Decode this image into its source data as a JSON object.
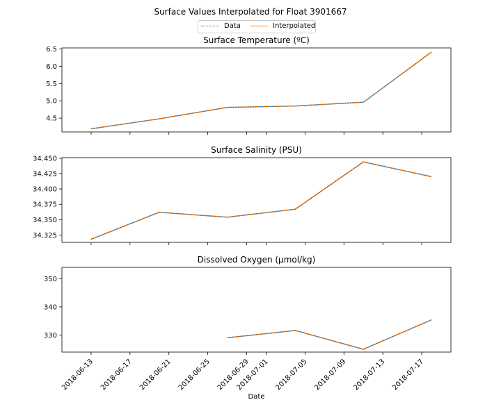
{
  "figure_title": "Surface Values Interpolated for Float 3901667",
  "legend": [
    {
      "label": "Data",
      "style": "dotted",
      "color": "#1f77b4"
    },
    {
      "label": "Interpolated",
      "style": "solid",
      "color": "#ff7f0e"
    }
  ],
  "colors": {
    "data": "#1f77b4",
    "interpolated": "#ff7f0e"
  },
  "chart_data": [
    {
      "type": "line",
      "title": "Surface Temperature (ºC)",
      "xlabel": "",
      "ylabel": "",
      "x": [
        "2018-06-13",
        "2018-06-20",
        "2018-06-27",
        "2018-07-04",
        "2018-07-11",
        "2018-07-18"
      ],
      "series": [
        {
          "name": "Data",
          "values": [
            4.19,
            4.48,
            4.81,
            4.85,
            4.96,
            6.41
          ]
        },
        {
          "name": "Interpolated",
          "values": [
            4.19,
            4.48,
            4.81,
            4.85,
            4.96,
            6.41
          ]
        }
      ],
      "ylim": [
        4.1,
        6.53
      ],
      "yticks": [
        4.5,
        5.0,
        5.5,
        6.0,
        6.5
      ],
      "ytick_labels": [
        "4.5",
        "5.0",
        "5.5",
        "6.0",
        "6.5"
      ],
      "grid": false
    },
    {
      "type": "line",
      "title": "Surface Salinity (PSU)",
      "xlabel": "",
      "ylabel": "",
      "x": [
        "2018-06-13",
        "2018-06-20",
        "2018-06-27",
        "2018-07-04",
        "2018-07-11",
        "2018-07-18"
      ],
      "series": [
        {
          "name": "Data",
          "values": [
            34.318,
            34.362,
            34.354,
            34.367,
            34.444,
            34.42
          ]
        },
        {
          "name": "Interpolated",
          "values": [
            34.318,
            34.362,
            34.354,
            34.367,
            34.444,
            34.42
          ]
        }
      ],
      "ylim": [
        34.313,
        34.451
      ],
      "yticks": [
        34.325,
        34.35,
        34.375,
        34.4,
        34.425,
        34.45
      ],
      "ytick_labels": [
        "34.325",
        "34.350",
        "34.375",
        "34.400",
        "34.425",
        "34.450"
      ],
      "grid": false
    },
    {
      "type": "line",
      "title": "Dissolved Oxygen (μmol/kg)",
      "xlabel": "Date",
      "ylabel": "",
      "x": [
        "2018-06-13",
        "2018-06-20",
        "2018-06-27",
        "2018-07-04",
        "2018-07-11",
        "2018-07-18"
      ],
      "series": [
        {
          "name": "Data",
          "values": [
            null,
            null,
            329.0,
            331.6,
            324.9,
            335.4
          ]
        },
        {
          "name": "Interpolated",
          "values": [
            null,
            null,
            329.0,
            331.6,
            324.9,
            335.4
          ]
        }
      ],
      "ylim": [
        323.9,
        354.1
      ],
      "yticks": [
        330,
        340,
        350
      ],
      "ytick_labels": [
        "330",
        "340",
        "350"
      ],
      "grid": false
    }
  ],
  "x_axis": {
    "xlim": [
      "2018-06-10",
      "2018-07-20"
    ],
    "ticks": [
      "2018-06-13",
      "2018-06-17",
      "2018-06-21",
      "2018-06-25",
      "2018-06-29",
      "2018-07-01",
      "2018-07-05",
      "2018-07-09",
      "2018-07-13",
      "2018-07-17"
    ],
    "tick_labels": [
      "2018-06-13",
      "2018-06-17",
      "2018-06-21",
      "2018-06-25",
      "2018-06-29",
      "2018-07-01",
      "2018-07-05",
      "2018-07-09",
      "2018-07-13",
      "2018-07-17"
    ],
    "tick_label_rotation": 45
  }
}
